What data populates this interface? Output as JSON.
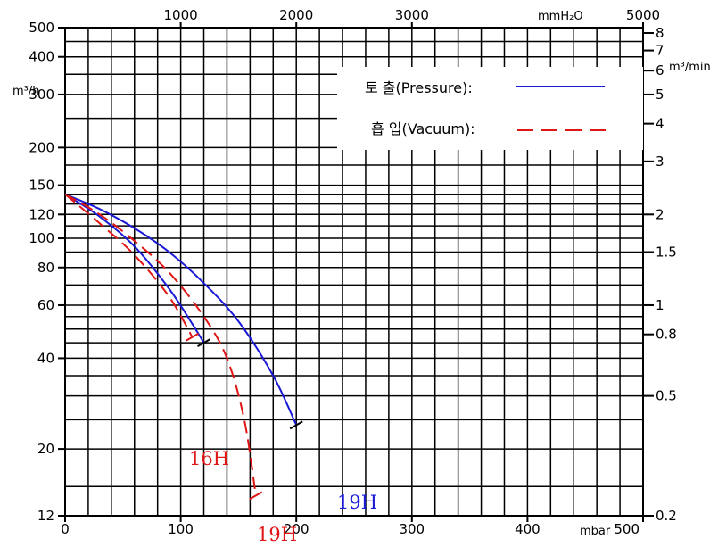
{
  "chart_data": {
    "type": "line",
    "title": "",
    "x_bottom": {
      "unit": "mbar",
      "ticks": [
        0,
        100,
        200,
        300,
        400,
        500
      ],
      "range": [
        0,
        500
      ]
    },
    "x_top": {
      "unit": "mmH₂O",
      "ticks": [
        1000,
        2000,
        3000,
        5000
      ],
      "range": [
        0,
        5000
      ]
    },
    "y_left": {
      "unit": "m³/h",
      "ticks": [
        12,
        20,
        40,
        60,
        80,
        100,
        120,
        150,
        200,
        300,
        400,
        500
      ],
      "range": [
        12,
        500
      ],
      "scale": "log"
    },
    "y_right": {
      "unit": "m³/min",
      "ticks": [
        "0.2",
        "0.5",
        "0.8",
        "1",
        "1.5",
        "2",
        "3",
        "4",
        "5",
        "6",
        "7",
        "8"
      ],
      "scale": "log"
    },
    "grid": true,
    "legend": {
      "placement": "top-right",
      "entries": [
        {
          "label": "토 출(Pressure):",
          "style": "solid",
          "color": "#1a1ad6"
        },
        {
          "label": "흡 입(Vacuum):",
          "style": "dashed",
          "color": "#e01515"
        }
      ]
    },
    "series": [
      {
        "name": "19H",
        "kind": "pressure",
        "color": "#1a1ad6",
        "points": [
          [
            0,
            140
          ],
          [
            30,
            125
          ],
          [
            60,
            108
          ],
          [
            90,
            90
          ],
          [
            120,
            71
          ],
          [
            150,
            53
          ],
          [
            180,
            35
          ],
          [
            200,
            24
          ]
        ]
      },
      {
        "name": "16H",
        "kind": "pressure",
        "color": "#1a1ad6",
        "points": [
          [
            0,
            140
          ],
          [
            30,
            118
          ],
          [
            60,
            94
          ],
          [
            90,
            68
          ],
          [
            110,
            52
          ],
          [
            120,
            45
          ]
        ]
      },
      {
        "name": "19H",
        "kind": "vacuum",
        "color": "#e01515",
        "points": [
          [
            0,
            140
          ],
          [
            30,
            120
          ],
          [
            60,
            98
          ],
          [
            90,
            77
          ],
          [
            120,
            55
          ],
          [
            140,
            40
          ],
          [
            155,
            25
          ],
          [
            165,
            14
          ]
        ]
      },
      {
        "name": "16H",
        "kind": "vacuum",
        "color": "#e01515",
        "points": [
          [
            0,
            140
          ],
          [
            30,
            112
          ],
          [
            60,
            88
          ],
          [
            90,
            64
          ],
          [
            110,
            47
          ]
        ]
      }
    ],
    "end_labels": [
      {
        "text": "16H",
        "color": "#e01515"
      },
      {
        "text": "19H",
        "color": "#e01515"
      },
      {
        "text": "19H",
        "color": "#1a1ad6"
      }
    ]
  }
}
